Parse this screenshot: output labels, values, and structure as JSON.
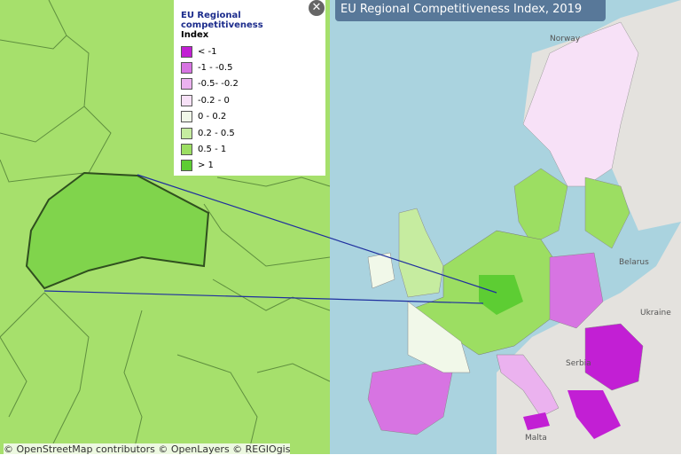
{
  "map_title": "EU Regional Competitiveness Index, 2019",
  "legend": {
    "title": "EU Regional competitiveness",
    "subtitle": "Index",
    "classes": [
      {
        "label": "< -1",
        "color": "#c21fd4"
      },
      {
        "label": "-1 - -0.5",
        "color": "#d774e2"
      },
      {
        "label": "-0.5- -0.2",
        "color": "#ebb2ef"
      },
      {
        "label": "-0.2 - 0",
        "color": "#f7e1f7"
      },
      {
        "label": "0 - 0.2",
        "color": "#f1f8e9"
      },
      {
        "label": "0.2 - 0.5",
        "color": "#c6eca0"
      },
      {
        "label": "0.5 - 1",
        "color": "#9cde62"
      },
      {
        "label": "> 1",
        "color": "#5dcd33"
      }
    ]
  },
  "places": [
    "Norway",
    "Belarus",
    "Ukraine",
    "Serbia",
    "Malta"
  ],
  "attribution": "© OpenStreetMap contributors © OpenLayers © REGIOgis"
}
